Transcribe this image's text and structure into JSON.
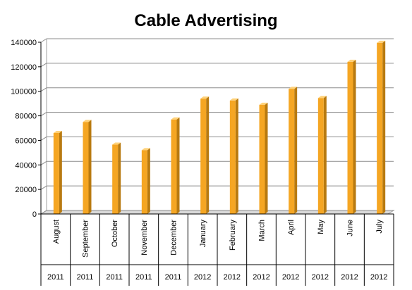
{
  "chart_data": {
    "type": "bar",
    "title": "Cable Advertising",
    "categories": [
      "August",
      "September",
      "October",
      "November",
      "December",
      "January",
      "February",
      "March",
      "April",
      "May",
      "June",
      "July"
    ],
    "years": [
      "2011",
      "2011",
      "2011",
      "2011",
      "2011",
      "2012",
      "2012",
      "2012",
      "2012",
      "2012",
      "2012",
      "2012"
    ],
    "values": [
      66000,
      75000,
      56500,
      52000,
      77000,
      94000,
      92500,
      89000,
      102000,
      94500,
      124000,
      139500
    ],
    "yticks": [
      "0",
      "20000",
      "40000",
      "60000",
      "80000",
      "100000",
      "120000",
      "140000"
    ],
    "ylim": [
      0,
      140000
    ],
    "grid": true,
    "bar_color": "#F5A623",
    "bar_side_color": "#B87A10",
    "bar_top_color": "#FFD27A"
  }
}
